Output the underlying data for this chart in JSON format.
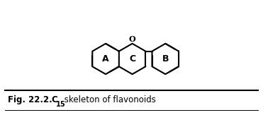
{
  "fig_label": "Fig. 22.2.",
  "formula": "C",
  "formula_sub": "15",
  "caption": " skeleton of flavonoids",
  "ring_A_label": "A",
  "ring_B_label": "B",
  "ring_C_label": "C",
  "oxygen_label": "O",
  "bg_color": "#ffffff",
  "line_color": "#000000",
  "line_width": 1.5,
  "caption_fontsize": 9,
  "label_fontsize": 9
}
